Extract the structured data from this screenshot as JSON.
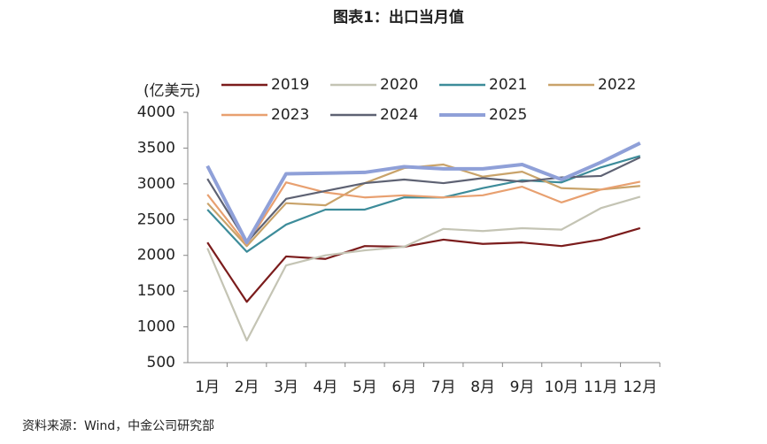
{
  "chart_data": {
    "type": "line",
    "title": "图表1：出口当月值",
    "y_label": "(亿美元)",
    "source": "资料来源：Wind，中金公司研究部",
    "categories": [
      "1月",
      "2月",
      "3月",
      "4月",
      "5月",
      "6月",
      "7月",
      "8月",
      "9月",
      "10月",
      "11月",
      "12月"
    ],
    "ylim": [
      500,
      4000
    ],
    "yticks": [
      500,
      1000,
      1500,
      2000,
      2500,
      3000,
      3500,
      4000
    ],
    "grid": false,
    "series": [
      {
        "name": "2019",
        "color": "#7b1c1c",
        "values": [
          2180,
          1350,
          1985,
          1950,
          2130,
          2120,
          2220,
          2160,
          2180,
          2130,
          2220,
          2380
        ]
      },
      {
        "name": "2020",
        "color": "#c4c4b4",
        "values": [
          2100,
          810,
          1860,
          2000,
          2070,
          2120,
          2370,
          2340,
          2380,
          2360,
          2660,
          2820
        ]
      },
      {
        "name": "2021",
        "color": "#3d8c9a",
        "values": [
          2640,
          2050,
          2430,
          2640,
          2640,
          2810,
          2810,
          2940,
          3050,
          3020,
          3230,
          3390
        ]
      },
      {
        "name": "2022",
        "color": "#c9a36a",
        "values": [
          2730,
          2130,
          2730,
          2700,
          3010,
          3220,
          3270,
          3100,
          3170,
          2940,
          2920,
          2970
        ]
      },
      {
        "name": "2023",
        "color": "#e8a070",
        "values": [
          2850,
          2150,
          3020,
          2880,
          2810,
          2840,
          2810,
          2840,
          2960,
          2740,
          2920,
          3030
        ]
      },
      {
        "name": "2024",
        "color": "#5e6273",
        "values": [
          3070,
          2180,
          2790,
          2900,
          3010,
          3060,
          3010,
          3080,
          3030,
          3090,
          3110,
          3370
        ]
      },
      {
        "name": "2025",
        "color": "#8fa0d8",
        "values": [
          3250,
          2180,
          3140,
          3150,
          3160,
          3240,
          3210,
          3210,
          3270,
          3060,
          3300,
          3570
        ]
      }
    ]
  }
}
